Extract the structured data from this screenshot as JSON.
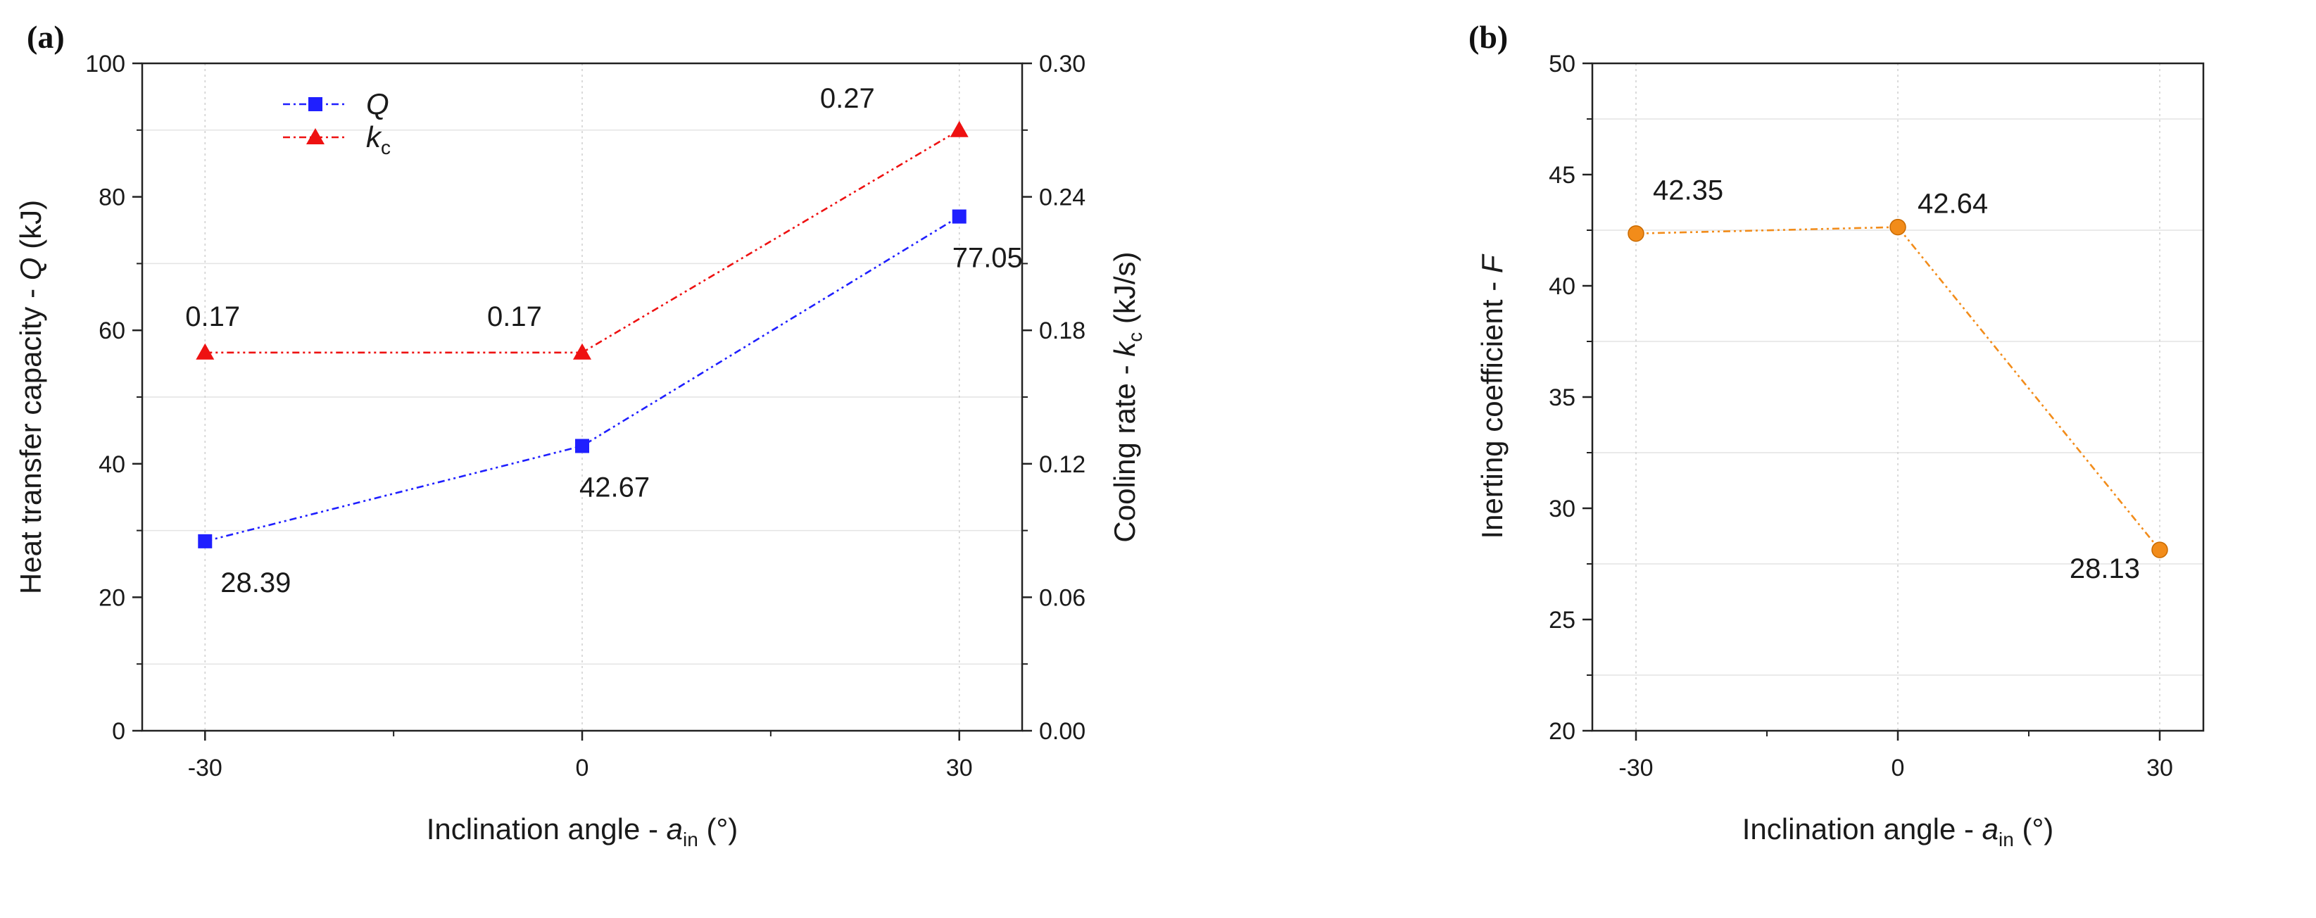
{
  "chart_data": [
    {
      "panel": "(a)",
      "type": "line",
      "x_ticks": [
        -30,
        0,
        30
      ],
      "xlim": [
        -35,
        35
      ],
      "xlabel": {
        "prefix": "Inclination angle - ",
        "sym": "a",
        "sub": "in",
        "suffix": " (°)"
      },
      "ylabel_left": {
        "prefix": "Heat transfer capacity - ",
        "sym": "Q",
        "suffix": " (kJ)"
      },
      "ylabel_right": {
        "prefix": "Cooling rate - ",
        "sym": "k",
        "sub": "c",
        "suffix": " (kJ/s)"
      },
      "ylim_left": [
        0,
        100
      ],
      "ylim_right": [
        0,
        0.3
      ],
      "y_ticks_left": [
        "0",
        "20",
        "40",
        "60",
        "80",
        "100"
      ],
      "y_ticks_right": [
        "0.00",
        "0.06",
        "0.12",
        "0.18",
        "0.24",
        "0.30"
      ],
      "series": [
        {
          "name": "Q",
          "sub": "",
          "axis": "left",
          "color": "#1f1fff",
          "marker": "square",
          "x": [
            -30,
            0,
            30
          ],
          "values": [
            28.39,
            42.67,
            77.05
          ],
          "labels": [
            "28.39",
            "42.67",
            "77.05"
          ]
        },
        {
          "name": "k",
          "sub": "c",
          "axis": "right",
          "color": "#ee1111",
          "marker": "triangle",
          "x": [
            -30,
            0,
            30
          ],
          "values": [
            0.17,
            0.17,
            0.27
          ],
          "labels": [
            "0.17",
            "0.17",
            "0.27"
          ]
        }
      ],
      "legend": "top-left"
    },
    {
      "panel": "(b)",
      "type": "line",
      "x_ticks": [
        -30,
        0,
        30
      ],
      "xlim": [
        -35,
        35
      ],
      "xlabel": {
        "prefix": "Inclination angle - ",
        "sym": "a",
        "sub": "in",
        "suffix": " (°)"
      },
      "ylabel_left": {
        "prefix": "Inerting coefficient - ",
        "sym": "F",
        "suffix": ""
      },
      "ylim_left": [
        20,
        50
      ],
      "y_ticks_left": [
        "20",
        "25",
        "30",
        "35",
        "40",
        "45",
        "50"
      ],
      "series": [
        {
          "name": "F",
          "axis": "left",
          "color": "#f28c1a",
          "marker": "circle",
          "x": [
            -30,
            0,
            30
          ],
          "values": [
            42.35,
            42.64,
            28.13
          ],
          "labels": [
            "42.35",
            "42.64",
            "28.13"
          ]
        }
      ]
    }
  ]
}
